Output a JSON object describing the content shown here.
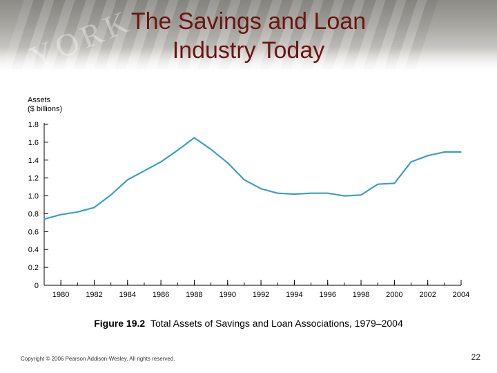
{
  "slide": {
    "title_line1": "The Savings and Loan",
    "title_line2": "Industry Today",
    "banner_text": "YORK",
    "figure_label": "Figure 19.2",
    "figure_caption": "Total Assets of Savings and Loan Associations, 1979–2004",
    "copyright": "Copyright © 2006 Pearson Addison-Wesley. All rights reserved.",
    "page_number": "22"
  },
  "chart_data": {
    "type": "line",
    "title": "",
    "ylabel_line1": "Assets",
    "ylabel_line2": "($ billions)",
    "xlabel": "",
    "xlim": [
      1979,
      2004
    ],
    "ylim": [
      0,
      1.8
    ],
    "x_ticks": [
      "1980",
      "1982",
      "1984",
      "1986",
      "1988",
      "1990",
      "1992",
      "1994",
      "1996",
      "1998",
      "2000",
      "2002",
      "2004"
    ],
    "y_ticks": [
      "0",
      "0.2",
      "0.4",
      "0.6",
      "0.8",
      "1.0",
      "1.2",
      "1.4",
      "1.6",
      "1.8"
    ],
    "line_color": "#3aa0c0",
    "series": [
      {
        "name": "Total Assets",
        "x": [
          1979,
          1980,
          1981,
          1982,
          1983,
          1984,
          1985,
          1986,
          1987,
          1988,
          1989,
          1990,
          1991,
          1992,
          1993,
          1994,
          1995,
          1996,
          1997,
          1998,
          1999,
          2000,
          2001,
          2002,
          2003,
          2004
        ],
        "values": [
          0.74,
          0.79,
          0.82,
          0.87,
          1.01,
          1.18,
          1.28,
          1.38,
          1.51,
          1.65,
          1.52,
          1.37,
          1.18,
          1.08,
          1.03,
          1.02,
          1.03,
          1.03,
          1.0,
          1.01,
          1.13,
          1.14,
          1.38,
          1.45,
          1.49,
          1.49
        ]
      }
    ]
  }
}
